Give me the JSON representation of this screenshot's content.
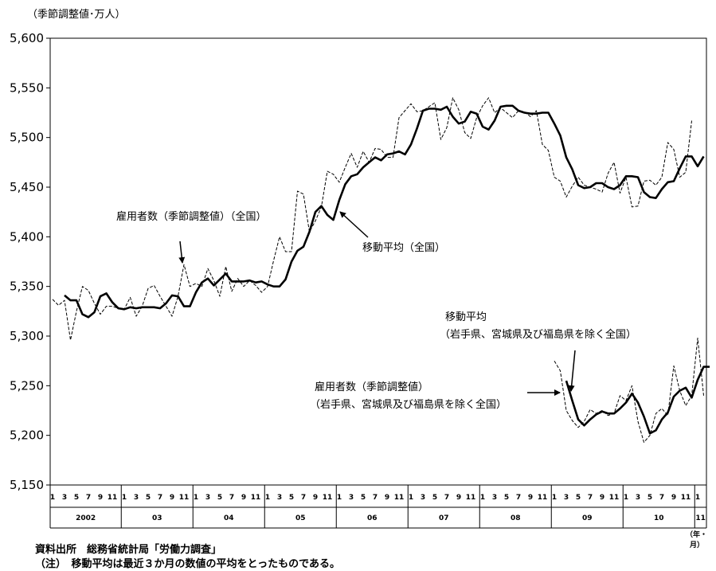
{
  "chart_data": {
    "type": "line",
    "unit_label": "（季節調整値･万人）",
    "ylim": [
      5150,
      5600
    ],
    "y_ticks": [
      "5,150",
      "5,200",
      "5,250",
      "5,300",
      "5,350",
      "5,400",
      "5,450",
      "5,500",
      "5,550",
      "5,600"
    ],
    "month_ticks": [
      "1",
      "3",
      "5",
      "7",
      "9",
      "11"
    ],
    "year_labels": [
      "2002",
      "03",
      "04",
      "05",
      "06",
      "07",
      "08",
      "09",
      "10",
      "11"
    ],
    "axis_unit_label": [
      "（年・",
      "月）"
    ],
    "series": [
      {
        "name": "雇用者数（季節調整値）（全国）",
        "start": "2002-01",
        "values": [
          5337,
          5331,
          5336,
          5296,
          5325,
          5350,
          5346,
          5333,
          5322,
          5330,
          5330,
          5328,
          5327,
          5339,
          5320,
          5330,
          5348,
          5351,
          5340,
          5330,
          5320,
          5340,
          5372,
          5350,
          5353,
          5350,
          5368,
          5356,
          5340,
          5370,
          5345,
          5358,
          5350,
          5356,
          5351,
          5344,
          5350,
          5376,
          5400,
          5385,
          5385,
          5446,
          5443,
          5405,
          5416,
          5430,
          5466,
          5463,
          5455,
          5470,
          5484,
          5470,
          5486,
          5475,
          5489,
          5488,
          5480,
          5480,
          5520,
          5527,
          5534,
          5526,
          5527,
          5531,
          5535,
          5498,
          5510,
          5540,
          5528,
          5505,
          5499,
          5520,
          5532,
          5540,
          5525,
          5530,
          5525,
          5520,
          5527,
          5526,
          5521,
          5527,
          5493,
          5487,
          5460,
          5456,
          5440,
          5451,
          5460,
          5452,
          5450,
          5448,
          5445,
          5464,
          5475,
          5444,
          5460,
          5430,
          5431,
          5456,
          5457,
          5452,
          5460,
          5495,
          5488,
          5460,
          5465,
          5517
        ]
      },
      {
        "name": "移動平均（全国）",
        "start": "2002-03",
        "values": [
          5341,
          5336,
          5336,
          5322,
          5319,
          5324,
          5340,
          5343,
          5334,
          5328,
          5327,
          5329,
          5328,
          5329,
          5329,
          5329,
          5328,
          5333,
          5341,
          5340,
          5330,
          5330,
          5344,
          5354,
          5358,
          5351,
          5357,
          5363,
          5355,
          5355,
          5355,
          5356,
          5354,
          5355,
          5352,
          5350,
          5350,
          5357,
          5375,
          5386,
          5390,
          5405,
          5425,
          5431,
          5422,
          5417,
          5437,
          5453,
          5461,
          5463,
          5470,
          5475,
          5480,
          5477,
          5483,
          5484,
          5486,
          5483,
          5493,
          5509,
          5527,
          5529,
          5529,
          5528,
          5531,
          5521,
          5514,
          5516,
          5526,
          5524,
          5511,
          5508,
          5517,
          5531,
          5532,
          5532,
          5527,
          5525,
          5524,
          5524,
          5525,
          5525,
          5514,
          5502,
          5480,
          5468,
          5452,
          5449,
          5450,
          5454,
          5454,
          5450,
          5448,
          5452,
          5461,
          5461,
          5460,
          5445,
          5440,
          5439,
          5448,
          5455,
          5456,
          5469,
          5481,
          5481,
          5471,
          5481
        ]
      },
      {
        "name": "雇用者数（季節調整値）（岩手県、宮城県及び福島県を除く全国）",
        "start": "2009-01",
        "values": [
          5275,
          5265,
          5225,
          5215,
          5208,
          5214,
          5226,
          5222,
          5225,
          5220,
          5222,
          5240,
          5235,
          5250,
          5214,
          5193,
          5200,
          5222,
          5227,
          5220,
          5270,
          5245,
          5230,
          5240,
          5298,
          5240
        ]
      },
      {
        "name": "移動平均（岩手県、宮城県及び福島県を除く全国）",
        "start": "2009-03",
        "values": [
          5255,
          5235,
          5216,
          5210,
          5216,
          5221,
          5224,
          5222,
          5222,
          5227,
          5233,
          5242,
          5233,
          5219,
          5202,
          5205,
          5216,
          5223,
          5239,
          5245,
          5248,
          5238,
          5256,
          5269,
          5269
        ]
      }
    ],
    "annotations": [
      {
        "text": "雇用者数（季節調整値）（全国）"
      },
      {
        "text": "移動平均（全国）"
      },
      {
        "text": "移動平均"
      },
      {
        "text": "（岩手県、宮城県及び福島県を除く全国）"
      },
      {
        "text": "雇用者数（季節調整値）"
      },
      {
        "text": "（岩手県、宮城県及び福島県を除く全国）"
      }
    ]
  },
  "notes": {
    "source": "資料出所　総務省統計局「労働力調査」",
    "note": "（注）　移動平均は最近３か月の数値の平均をとったものである。"
  }
}
